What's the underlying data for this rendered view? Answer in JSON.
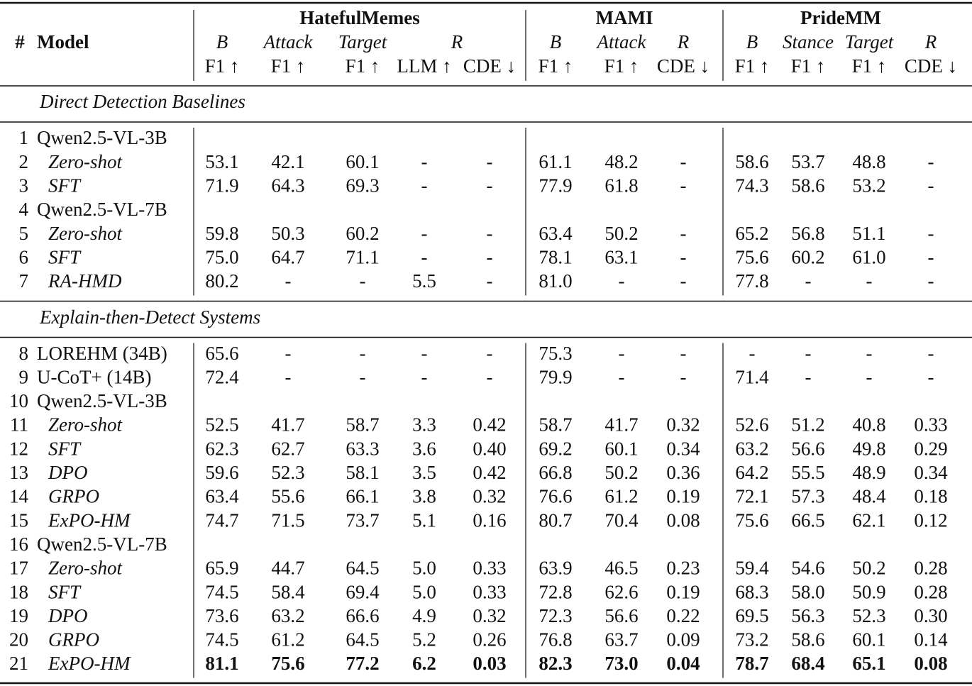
{
  "header": {
    "number": "#",
    "model": "Model",
    "groups": [
      {
        "name": "HatefulMemes",
        "subheads": [
          {
            "label": "B",
            "metrics": [
              "F1 ↑"
            ]
          },
          {
            "label": "Attack",
            "metrics": [
              "F1 ↑"
            ]
          },
          {
            "label": "Target",
            "metrics": [
              "F1 ↑"
            ]
          },
          {
            "label": "R",
            "metrics": [
              "LLM ↑",
              "CDE ↓"
            ]
          }
        ]
      },
      {
        "name": "MAMI",
        "subheads": [
          {
            "label": "B",
            "metrics": [
              "F1 ↑"
            ]
          },
          {
            "label": "Attack",
            "metrics": [
              "F1 ↑"
            ]
          },
          {
            "label": "R",
            "metrics": [
              "CDE ↓"
            ]
          }
        ]
      },
      {
        "name": "PrideMM",
        "subheads": [
          {
            "label": "B",
            "metrics": [
              "F1 ↑"
            ]
          },
          {
            "label": "Stance",
            "metrics": [
              "F1 ↑"
            ]
          },
          {
            "label": "Target",
            "metrics": [
              "F1 ↑"
            ]
          },
          {
            "label": "R",
            "metrics": [
              "CDE ↓"
            ]
          }
        ]
      }
    ]
  },
  "sections": [
    {
      "title": "Direct Detection Baselines",
      "rows": [
        {
          "number": "1",
          "model": "Qwen2.5-VL-3B"
        },
        {
          "number": "2",
          "model": "Zero-shot",
          "italic": true,
          "cells": [
            "53.1",
            "42.1",
            "60.1",
            "-",
            "-",
            "61.1",
            "48.2",
            "-",
            "58.6",
            "53.7",
            "48.8",
            "-"
          ]
        },
        {
          "number": "3",
          "model": "SFT",
          "italic": true,
          "cells": [
            "71.9",
            "64.3",
            "69.3",
            "-",
            "-",
            "77.9",
            "61.8",
            "-",
            "74.3",
            "58.6",
            "53.2",
            "-"
          ]
        },
        {
          "number": "4",
          "model": "Qwen2.5-VL-7B"
        },
        {
          "number": "5",
          "model": "Zero-shot",
          "italic": true,
          "cells": [
            "59.8",
            "50.3",
            "60.2",
            "-",
            "-",
            "63.4",
            "50.2",
            "-",
            "65.2",
            "56.8",
            "51.1",
            "-"
          ]
        },
        {
          "number": "6",
          "model": "SFT",
          "italic": true,
          "cells": [
            "75.0",
            "64.7",
            "71.1",
            "-",
            "-",
            "78.1",
            "63.1",
            "-",
            "75.6",
            "60.2",
            "61.0",
            "-"
          ]
        },
        {
          "number": "7",
          "model": "RA-HMD",
          "italic": true,
          "cells": [
            "80.2",
            "-",
            "-",
            "5.5",
            "-",
            "81.0",
            "-",
            "-",
            "77.8",
            "-",
            "-",
            "-"
          ]
        }
      ]
    },
    {
      "title": "Explain-then-Detect Systems",
      "rows": [
        {
          "number": "8",
          "model": "LOREHM (34B)",
          "cells": [
            "65.6",
            "-",
            "-",
            "-",
            "-",
            "75.3",
            "-",
            "-",
            "-",
            "-",
            "-",
            "-"
          ]
        },
        {
          "number": "9",
          "model": "U-CoT+ (14B)",
          "cells": [
            "72.4",
            "-",
            "-",
            "-",
            "-",
            "79.9",
            "-",
            "-",
            "71.4",
            "-",
            "-",
            "-"
          ]
        },
        {
          "number": "10",
          "model": "Qwen2.5-VL-3B"
        },
        {
          "number": "11",
          "model": "Zero-shot",
          "italic": true,
          "cells": [
            "52.5",
            "41.7",
            "58.7",
            "3.3",
            "0.42",
            "58.7",
            "41.7",
            "0.32",
            "52.6",
            "51.2",
            "40.8",
            "0.33"
          ]
        },
        {
          "number": "12",
          "model": "SFT",
          "italic": true,
          "cells": [
            "62.3",
            "62.7",
            "63.3",
            "3.6",
            "0.40",
            "69.2",
            "60.1",
            "0.34",
            "63.2",
            "56.6",
            "49.8",
            "0.29"
          ]
        },
        {
          "number": "13",
          "model": "DPO",
          "italic": true,
          "cells": [
            "59.6",
            "52.3",
            "58.1",
            "3.5",
            "0.42",
            "66.8",
            "50.2",
            "0.36",
            "64.2",
            "55.5",
            "48.9",
            "0.34"
          ]
        },
        {
          "number": "14",
          "model": "GRPO",
          "italic": true,
          "cells": [
            "63.4",
            "55.6",
            "66.1",
            "3.8",
            "0.32",
            "76.6",
            "61.2",
            "0.19",
            "72.1",
            "57.3",
            "48.4",
            "0.18"
          ]
        },
        {
          "number": "15",
          "model": "ExPO-HM",
          "italic": true,
          "cells": [
            "74.7",
            "71.5",
            "73.7",
            "5.1",
            "0.16",
            "80.7",
            "70.4",
            "0.08",
            "75.6",
            "66.5",
            "62.1",
            "0.12"
          ]
        },
        {
          "number": "16",
          "model": "Qwen2.5-VL-7B"
        },
        {
          "number": "17",
          "model": "Zero-shot",
          "italic": true,
          "cells": [
            "65.9",
            "44.7",
            "64.5",
            "5.0",
            "0.33",
            "63.9",
            "46.5",
            "0.23",
            "59.4",
            "54.6",
            "50.2",
            "0.28"
          ]
        },
        {
          "number": "18",
          "model": "SFT",
          "italic": true,
          "cells": [
            "74.5",
            "58.4",
            "69.4",
            "5.0",
            "0.33",
            "72.8",
            "62.6",
            "0.19",
            "68.3",
            "58.0",
            "50.9",
            "0.28"
          ]
        },
        {
          "number": "19",
          "model": "DPO",
          "italic": true,
          "cells": [
            "73.6",
            "63.2",
            "66.6",
            "4.9",
            "0.32",
            "72.3",
            "56.6",
            "0.22",
            "69.5",
            "56.3",
            "52.3",
            "0.30"
          ]
        },
        {
          "number": "20",
          "model": "GRPO",
          "italic": true,
          "cells": [
            "74.5",
            "61.2",
            "64.5",
            "5.2",
            "0.26",
            "76.8",
            "63.7",
            "0.09",
            "73.2",
            "58.6",
            "60.1",
            "0.14"
          ]
        },
        {
          "number": "21",
          "model": "ExPO-HM",
          "italic": true,
          "bold": true,
          "cells": [
            "81.1",
            "75.6",
            "77.2",
            "6.2",
            "0.03",
            "82.3",
            "73.0",
            "0.04",
            "78.7",
            "68.4",
            "65.1",
            "0.08"
          ]
        }
      ]
    }
  ]
}
